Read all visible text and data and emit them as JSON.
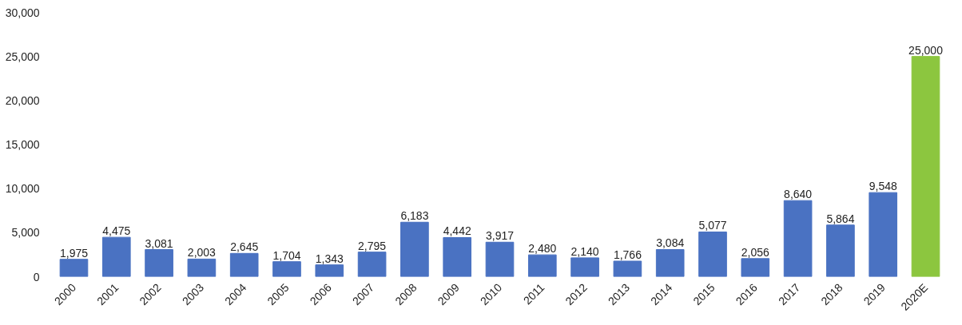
{
  "chart_data": {
    "type": "bar",
    "categories": [
      "2000",
      "2001",
      "2002",
      "2003",
      "2004",
      "2005",
      "2006",
      "2007",
      "2008",
      "2009",
      "2010",
      "2011",
      "2012",
      "2013",
      "2014",
      "2015",
      "2016",
      "2017",
      "2018",
      "2019",
      "2020E"
    ],
    "values": [
      1975,
      4475,
      3081,
      2003,
      2645,
      1704,
      1343,
      2795,
      6183,
      4442,
      3917,
      2480,
      2140,
      1766,
      3084,
      5077,
      2056,
      8640,
      5864,
      9548,
      25000
    ],
    "value_labels": [
      "1,975",
      "4,475",
      "3,081",
      "2,003",
      "2,645",
      "1,704",
      "1,343",
      "2,795",
      "6,183",
      "4,442",
      "3,917",
      "2,480",
      "2,140",
      "1,766",
      "3,084",
      "5,077",
      "2,056",
      "8,640",
      "5,864",
      "9,548",
      "25,000"
    ],
    "colors": [
      "#4a72c2",
      "#4a72c2",
      "#4a72c2",
      "#4a72c2",
      "#4a72c2",
      "#4a72c2",
      "#4a72c2",
      "#4a72c2",
      "#4a72c2",
      "#4a72c2",
      "#4a72c2",
      "#4a72c2",
      "#4a72c2",
      "#4a72c2",
      "#4a72c2",
      "#4a72c2",
      "#4a72c2",
      "#4a72c2",
      "#4a72c2",
      "#4a72c2",
      "#8cc63f"
    ],
    "ylim": [
      0,
      30000
    ],
    "yticks": [
      0,
      {
        "value": 5000,
        "label": "5,000"
      },
      {
        "value": 10000,
        "label": "10,000"
      },
      {
        "value": 15000,
        "label": "15,000"
      },
      {
        "value": 20000,
        "label": "20,000"
      },
      {
        "value": 25000,
        "label": "25,000"
      },
      {
        "value": 30000,
        "label": "30,000"
      }
    ]
  }
}
